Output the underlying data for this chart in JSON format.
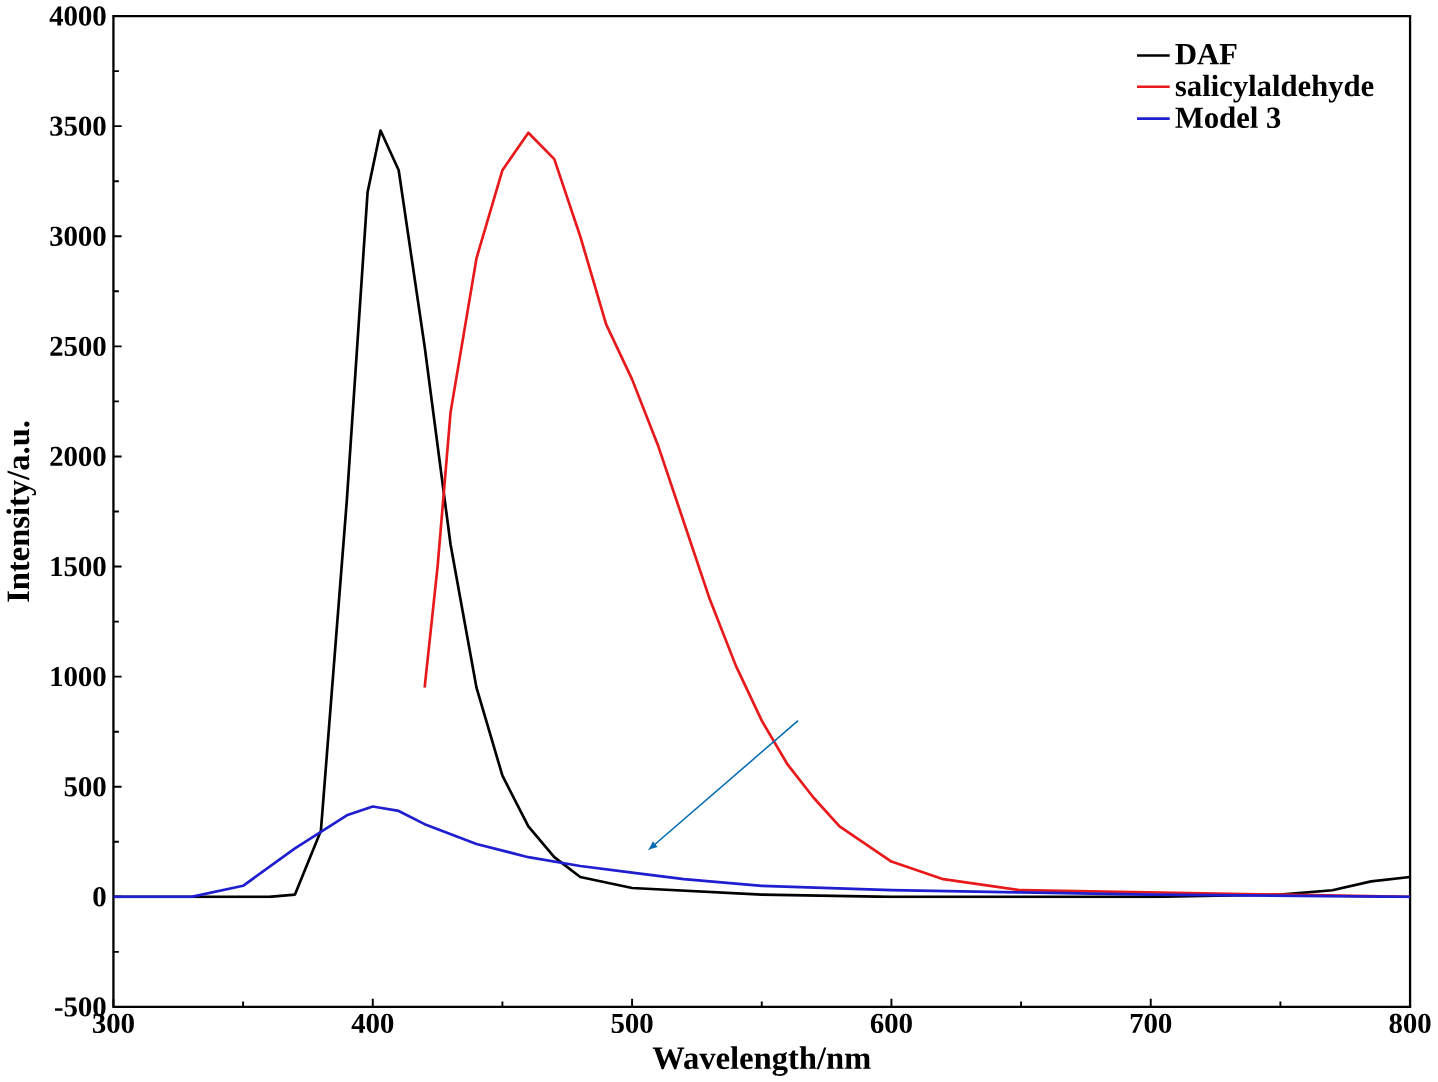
{
  "chart_data": {
    "type": "line",
    "xlabel": "Wavelength/nm",
    "ylabel": "Intensity/a.u.",
    "xlim": [
      300,
      800
    ],
    "xticks": [
      300,
      400,
      500,
      600,
      700,
      800
    ],
    "ylim": [
      -500,
      4000
    ],
    "yticks": [
      -500,
      0,
      500,
      1000,
      1500,
      2000,
      2500,
      3000,
      3500,
      4000
    ],
    "grid": false,
    "legend": "top right",
    "marker": "none",
    "line_style": "solid",
    "series": [
      {
        "name": "DAF",
        "color": "#000000",
        "x": [
          300,
          360,
          370,
          380,
          390,
          398,
          403,
          410,
          420,
          430,
          440,
          450,
          460,
          470,
          480,
          500,
          550,
          600,
          700,
          750,
          770,
          785,
          800
        ],
        "values": [
          0,
          0,
          10,
          300,
          1800,
          3200,
          3480,
          3300,
          2500,
          1600,
          950,
          550,
          320,
          180,
          90,
          40,
          10,
          0,
          0,
          10,
          30,
          70,
          90
        ]
      },
      {
        "name": "salicylaldehyde",
        "color": "#e8191b",
        "x": [
          420,
          425,
          430,
          440,
          450,
          460,
          470,
          480,
          490,
          500,
          510,
          520,
          530,
          540,
          550,
          560,
          570,
          580,
          600,
          620,
          650,
          700,
          800
        ],
        "values": [
          950,
          1500,
          2200,
          2900,
          3300,
          3470,
          3350,
          3000,
          2600,
          2350,
          2050,
          1700,
          1350,
          1050,
          800,
          600,
          450,
          320,
          160,
          80,
          30,
          null,
          0
        ]
      },
      {
        "name": "Model 3",
        "color": "#1f1fd0",
        "x": [
          300,
          330,
          350,
          370,
          390,
          400,
          410,
          420,
          440,
          460,
          480,
          500,
          520,
          550,
          600,
          650,
          700,
          800
        ],
        "values": [
          0,
          0,
          50,
          220,
          370,
          410,
          390,
          330,
          240,
          180,
          140,
          110,
          80,
          50,
          30,
          20,
          10,
          0
        ]
      }
    ]
  }
}
